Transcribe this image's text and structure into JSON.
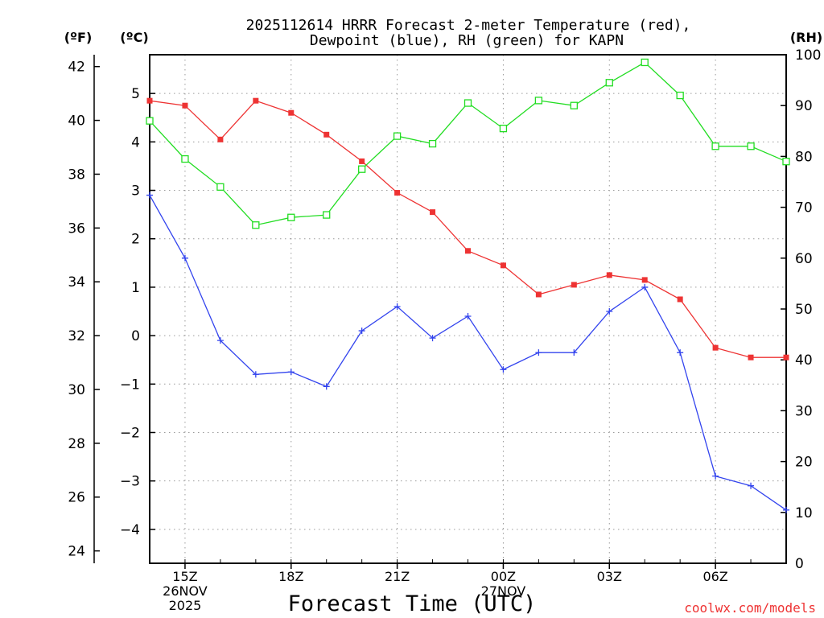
{
  "chart_data": {
    "type": "line",
    "title_line1": "2025112614 HRRR Forecast 2-meter Temperature (red),",
    "title_line2": "Dewpoint (blue), RH (green) for KAPN",
    "left_axis_f_label": "(ºF)",
    "left_axis_c_label": "(ºC)",
    "right_axis_label": "(RH)",
    "xlabel": "Forecast Time (UTC)",
    "watermark": "coolwx.com/models",
    "x_hours": [
      14,
      15,
      16,
      17,
      18,
      19,
      20,
      21,
      22,
      23,
      24,
      25,
      26,
      27,
      28,
      29,
      30,
      31,
      32
    ],
    "x_ticks": [
      {
        "hour": 15,
        "lines": [
          "15Z",
          "26NOV",
          "2025"
        ]
      },
      {
        "hour": 18,
        "lines": [
          "18Z"
        ]
      },
      {
        "hour": 21,
        "lines": [
          "21Z"
        ]
      },
      {
        "hour": 24,
        "lines": [
          "00Z",
          "27NOV"
        ]
      },
      {
        "hour": 27,
        "lines": [
          "03Z"
        ]
      },
      {
        "hour": 30,
        "lines": [
          "06Z"
        ]
      }
    ],
    "c_range": [
      -4.7,
      5.8
    ],
    "c_ticks": [
      -4,
      -3,
      -2,
      -1,
      0,
      1,
      2,
      3,
      4,
      5
    ],
    "f_ticks": [
      24,
      26,
      28,
      30,
      32,
      34,
      36,
      38,
      40,
      42
    ],
    "rh_range": [
      0,
      100
    ],
    "rh_ticks": [
      0,
      10,
      20,
      30,
      40,
      50,
      60,
      70,
      80,
      90,
      100
    ],
    "series": [
      {
        "name": "Temperature",
        "axis": "C",
        "color": "#ee3333",
        "marker": "filled-square",
        "values": [
          4.85,
          4.75,
          4.05,
          4.85,
          4.6,
          4.15,
          3.6,
          2.95,
          2.55,
          1.75,
          1.45,
          0.85,
          1.05,
          1.25,
          1.15,
          0.75,
          -0.25,
          -0.45,
          -0.45
        ]
      },
      {
        "name": "Dewpoint",
        "axis": "C",
        "color": "#3344ee",
        "marker": "plus",
        "values": [
          2.9,
          1.6,
          -0.1,
          -0.8,
          -0.75,
          -1.05,
          0.1,
          0.6,
          -0.05,
          0.4,
          -0.7,
          -0.35,
          -0.35,
          0.5,
          1.0,
          -0.35,
          -2.9,
          -3.1,
          -3.6
        ]
      },
      {
        "name": "RH",
        "axis": "RH",
        "color": "#22dd22",
        "marker": "open-square",
        "values": [
          87,
          79.5,
          74,
          66.5,
          68,
          68.5,
          77.5,
          84,
          82.5,
          90.5,
          85.5,
          91,
          90,
          94.5,
          98.5,
          92,
          82,
          82,
          79
        ]
      }
    ]
  }
}
